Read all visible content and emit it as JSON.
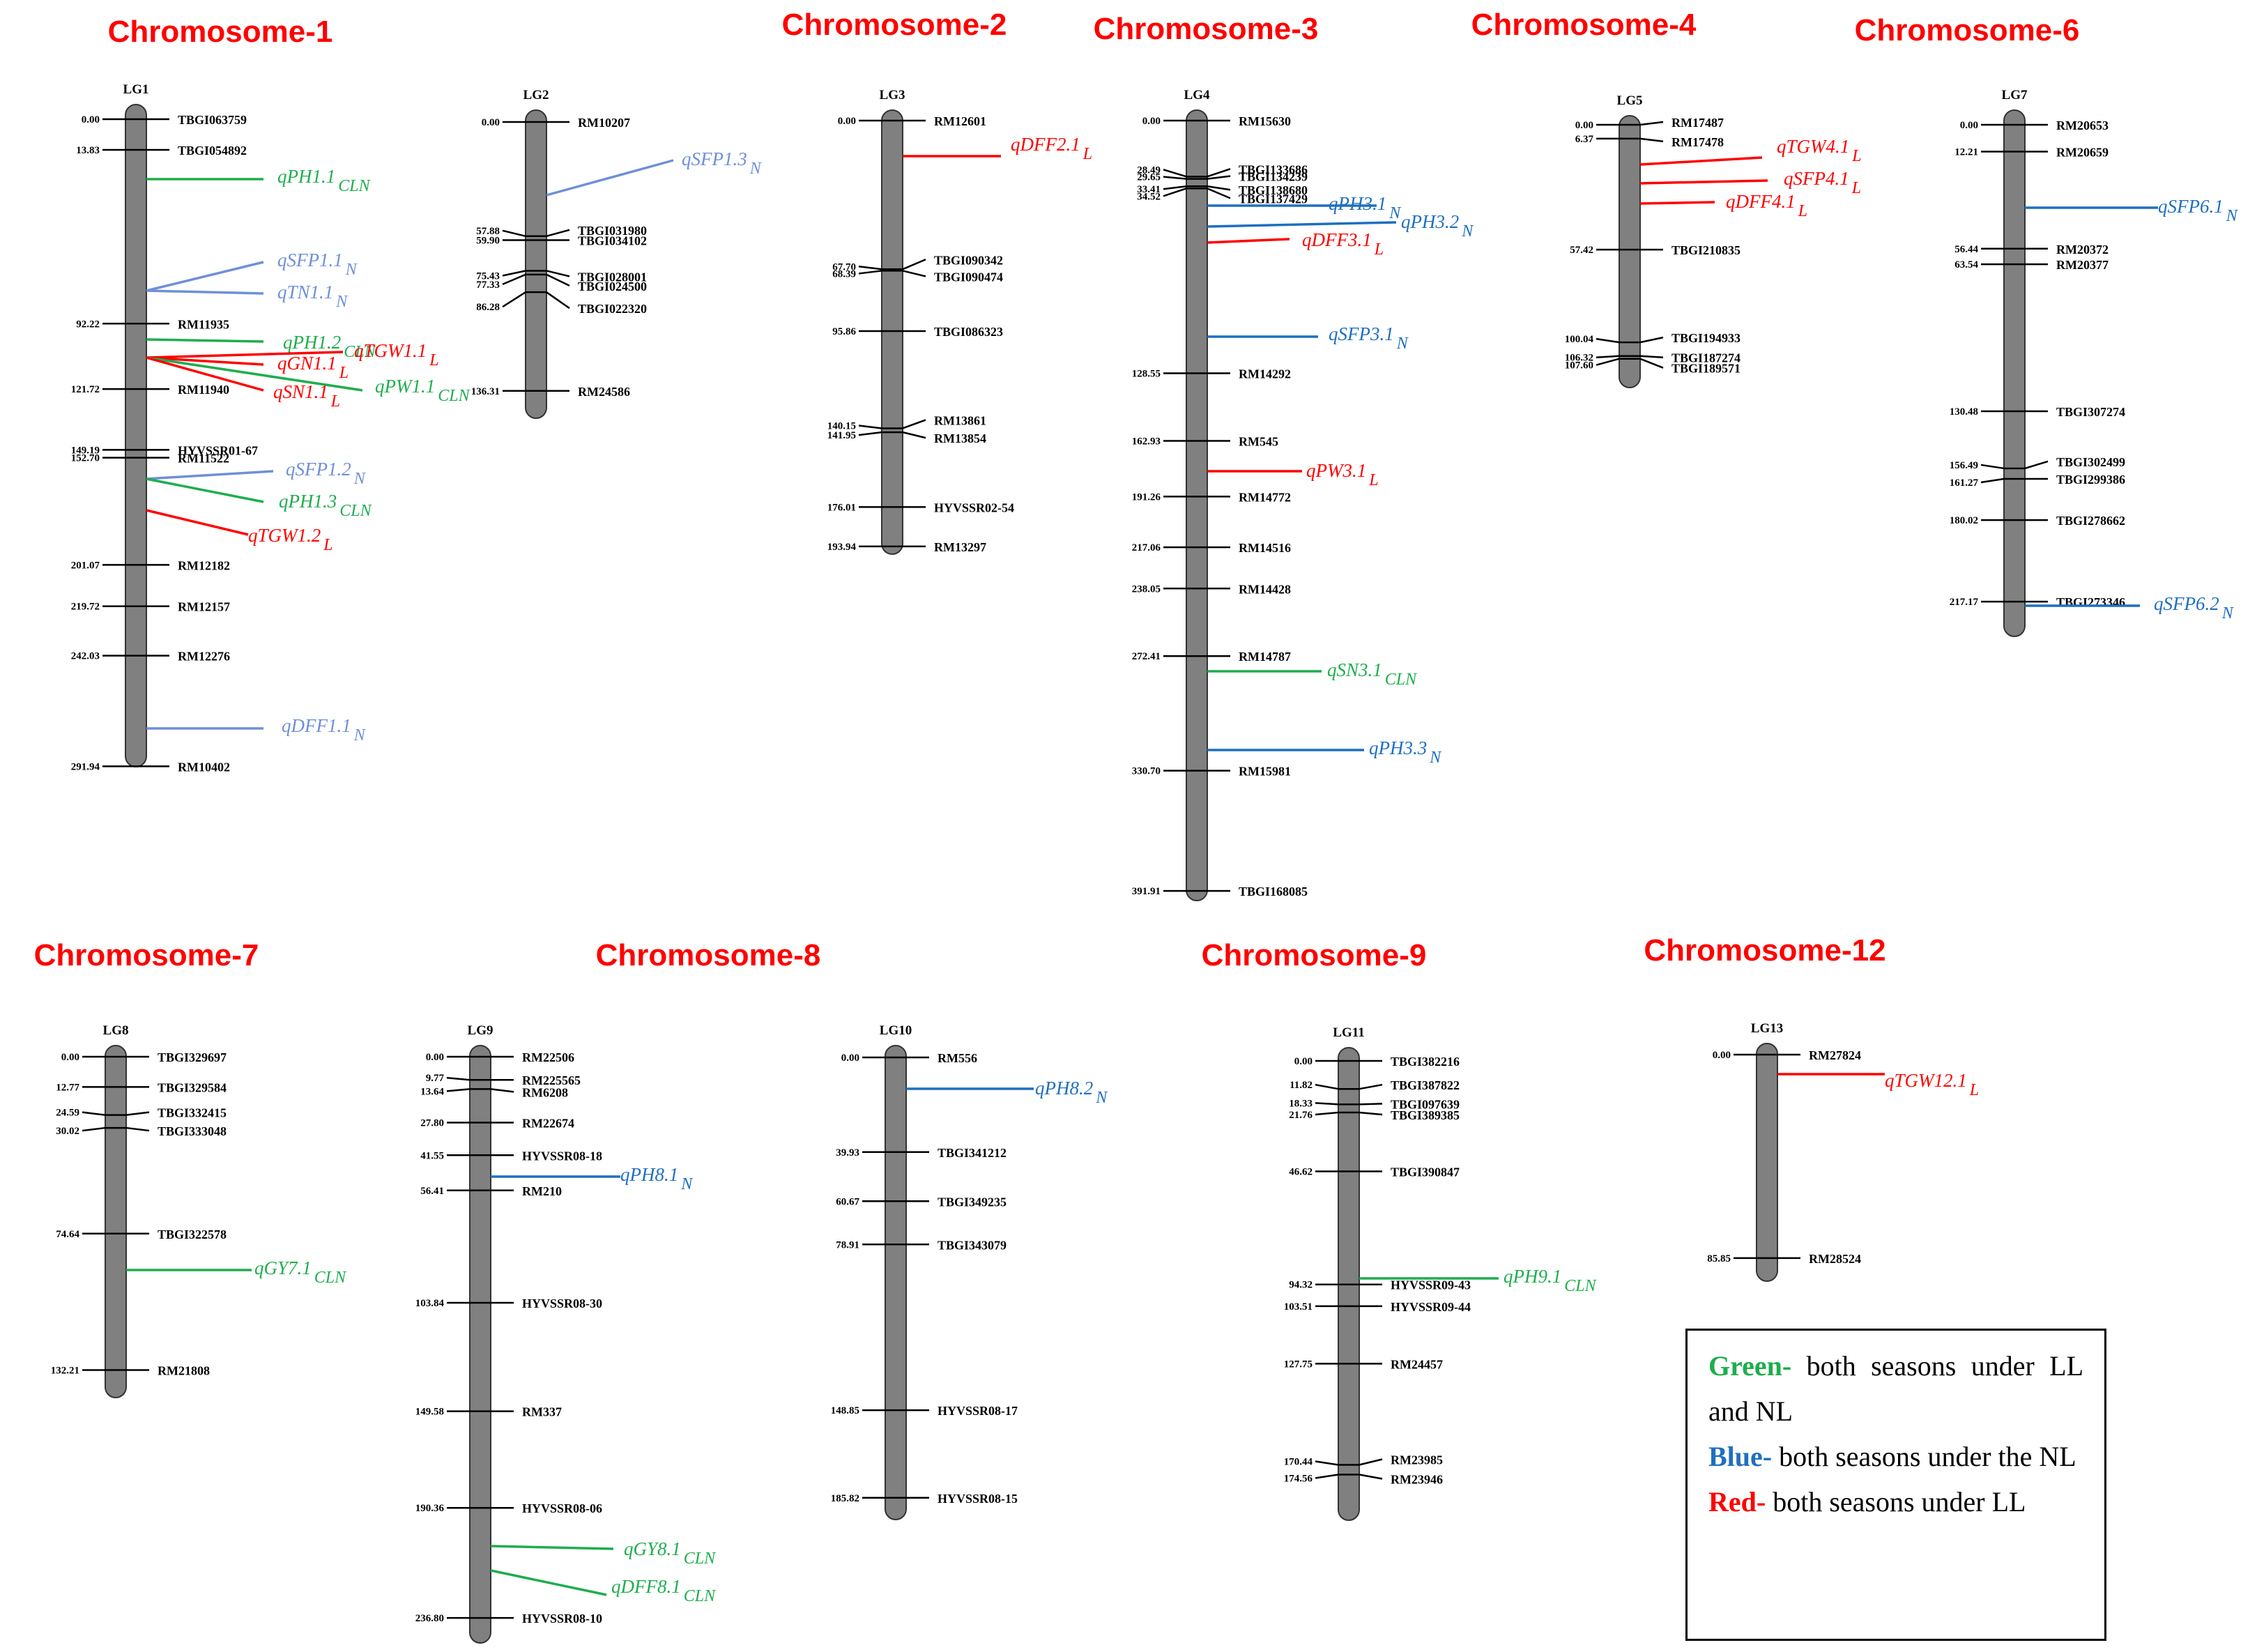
{
  "colors": {
    "title": "#ff0000",
    "green": "#1fad4e",
    "blue": "#1f6fbf",
    "red": "#ff0000",
    "orange": "#f4a460",
    "lightblue": "#6f8fd8",
    "bar": "#808080"
  },
  "chromosomes": [
    {
      "id": "c1",
      "title": "Chromosome-1"
    },
    {
      "id": "c2",
      "title": "Chromosome-2"
    },
    {
      "id": "c3",
      "title": "Chromosome-3"
    },
    {
      "id": "c4",
      "title": "Chromosome-4"
    },
    {
      "id": "c6",
      "title": "Chromosome-6"
    },
    {
      "id": "c7",
      "title": "Chromosome-7"
    },
    {
      "id": "c8",
      "title": "Chromosome-8"
    },
    {
      "id": "c9",
      "title": "Chromosome-9"
    },
    {
      "id": "c12",
      "title": "Chromosome-12"
    }
  ],
  "linkage_groups": [
    {
      "name": "LG1",
      "markers": [
        [
          "0.00",
          "TBGI063759"
        ],
        [
          "13.83",
          "TBGI054892"
        ],
        [
          "92.22",
          "RM11935"
        ],
        [
          "121.72",
          "RM11940"
        ],
        [
          "149.19",
          "HYVSSR01-67"
        ],
        [
          "152.70",
          "RM11522"
        ],
        [
          "201.07",
          "RM12182"
        ],
        [
          "219.72",
          "RM12157"
        ],
        [
          "242.03",
          "RM12276"
        ],
        [
          "291.94",
          "RM10402"
        ]
      ],
      "qtls": [
        [
          "qPH1.1",
          "CLN",
          "green"
        ],
        [
          "qSFP1.1",
          "N",
          "lightblue"
        ],
        [
          "qTN1.1",
          "N",
          "lightblue"
        ],
        [
          "qPH1.2",
          "CLN",
          "green"
        ],
        [
          "qTGW1.1",
          "L",
          "red"
        ],
        [
          "qGN1.1",
          "L",
          "red"
        ],
        [
          "qPW1.1",
          "CLN",
          "green"
        ],
        [
          "qSN1.1",
          "L",
          "red"
        ],
        [
          "qSFP1.2",
          "N",
          "lightblue"
        ],
        [
          "qPH1.3",
          "CLN",
          "green"
        ],
        [
          "qTGW1.2",
          "L",
          "red"
        ],
        [
          "qDFF1.1",
          "N",
          "lightblue"
        ]
      ]
    },
    {
      "name": "LG2",
      "markers": [
        [
          "0.00",
          "RM10207"
        ],
        [
          "57.88",
          "TBGI031980"
        ],
        [
          "59.90",
          "TBGI034102"
        ],
        [
          "75.43",
          "TBGI028001"
        ],
        [
          "77.33",
          "TBGI024500"
        ],
        [
          "86.28",
          "TBGI022320"
        ],
        [
          "136.31",
          "RM24586"
        ]
      ],
      "qtls": [
        [
          "qSFP1.3",
          "N",
          "lightblue"
        ]
      ]
    },
    {
      "name": "LG3",
      "markers": [
        [
          "0.00",
          "RM12601"
        ],
        [
          "67.70",
          "TBGI090342"
        ],
        [
          "68.39",
          "TBGI090474"
        ],
        [
          "95.86",
          "TBGI086323"
        ],
        [
          "140.15",
          "RM13861"
        ],
        [
          "141.95",
          "RM13854"
        ],
        [
          "176.01",
          "HYVSSR02-54"
        ],
        [
          "193.94",
          "RM13297"
        ]
      ],
      "qtls": [
        [
          "qDFF2.1",
          "L",
          "red"
        ]
      ]
    },
    {
      "name": "LG4",
      "markers": [
        [
          "0.00",
          "RM15630"
        ],
        [
          "28.49",
          "TBGI133686"
        ],
        [
          "29.65",
          "TBGI134239"
        ],
        [
          "33.41",
          "TBGI138680"
        ],
        [
          "34.52",
          "TBGI137429"
        ],
        [
          "128.55",
          "RM14292"
        ],
        [
          "162.93",
          "RM545"
        ],
        [
          "191.26",
          "RM14772"
        ],
        [
          "217.06",
          "RM14516"
        ],
        [
          "238.05",
          "RM14428"
        ],
        [
          "272.41",
          "RM14787"
        ],
        [
          "330.70",
          "RM15981"
        ],
        [
          "391.91",
          "TBGI168085"
        ]
      ],
      "qtls": [
        [
          "qPH3.1",
          "N",
          "blue"
        ],
        [
          "qPH3.2",
          "N",
          "blue"
        ],
        [
          "qDFF3.1",
          "L",
          "red"
        ],
        [
          "qSFP3.1",
          "N",
          "blue"
        ],
        [
          "qPW3.1",
          "L",
          "red"
        ],
        [
          "qSN3.1",
          "CLN",
          "green"
        ],
        [
          "qPH3.3",
          "N",
          "blue"
        ]
      ]
    },
    {
      "name": "LG5",
      "markers": [
        [
          "0.00",
          "RM17487"
        ],
        [
          "6.37",
          "RM17478"
        ],
        [
          "57.42",
          "TBGI210835"
        ],
        [
          "100.04",
          "TBGI194933"
        ],
        [
          "106.32",
          "TBGI187274"
        ],
        [
          "107.60",
          "TBGI189571"
        ]
      ],
      "qtls": [
        [
          "qTGW4.1",
          "L",
          "red"
        ],
        [
          "qSFP4.1",
          "L",
          "red"
        ],
        [
          "qDFF4.1",
          "L",
          "red"
        ]
      ]
    },
    {
      "name": "LG7",
      "markers": [
        [
          "0.00",
          "RM20653"
        ],
        [
          "12.21",
          "RM20659"
        ],
        [
          "56.44",
          "RM20372"
        ],
        [
          "63.54",
          "RM20377"
        ],
        [
          "130.48",
          "TBGI307274"
        ],
        [
          "156.49",
          "TBGI302499"
        ],
        [
          "161.27",
          "TBGI299386"
        ],
        [
          "180.02",
          "TBGI278662"
        ],
        [
          "217.17",
          "TBGI273346"
        ]
      ],
      "qtls": [
        [
          "qSFP6.1",
          "N",
          "blue"
        ],
        [
          "qSFP6.2",
          "N",
          "blue"
        ]
      ]
    },
    {
      "name": "LG8",
      "markers": [
        [
          "0.00",
          "TBGI329697"
        ],
        [
          "12.77",
          "TBGI329584"
        ],
        [
          "24.59",
          "TBGI332415"
        ],
        [
          "30.02",
          "TBGI333048"
        ],
        [
          "74.64",
          "TBGI322578"
        ],
        [
          "132.21",
          "RM21808"
        ]
      ],
      "qtls": [
        [
          "qGY7.1",
          "CLN",
          "green"
        ]
      ]
    },
    {
      "name": "LG9",
      "markers": [
        [
          "0.00",
          "RM22506"
        ],
        [
          "9.77",
          "RM225565"
        ],
        [
          "13.64",
          "RM6208"
        ],
        [
          "27.80",
          "RM22674"
        ],
        [
          "41.55",
          "HYVSSR08-18"
        ],
        [
          "56.41",
          "RM210"
        ],
        [
          "103.84",
          "HYVSSR08-30"
        ],
        [
          "149.58",
          "RM337"
        ],
        [
          "190.36",
          "HYVSSR08-06"
        ],
        [
          "236.80",
          "HYVSSR08-10"
        ]
      ],
      "qtls": [
        [
          "qPH8.1",
          "N",
          "blue"
        ],
        [
          "qGY8.1",
          "CLN",
          "green"
        ],
        [
          "qDFF8.1",
          "CLN",
          "green"
        ]
      ]
    },
    {
      "name": "LG10",
      "markers": [
        [
          "0.00",
          "RM556"
        ],
        [
          "39.93",
          "TBGI341212"
        ],
        [
          "60.67",
          "TBGI349235"
        ],
        [
          "78.91",
          "TBGI343079"
        ],
        [
          "148.85",
          "HYVSSR08-17"
        ],
        [
          "185.82",
          "HYVSSR08-15"
        ]
      ],
      "qtls": [
        [
          "qPH8.2",
          "N",
          "blue"
        ]
      ]
    },
    {
      "name": "LG11",
      "markers": [
        [
          "0.00",
          "TBGI382216"
        ],
        [
          "11.82",
          "TBGI387822"
        ],
        [
          "18.33",
          "TBGI097639"
        ],
        [
          "21.76",
          "TBGI389385"
        ],
        [
          "46.62",
          "TBGI390847"
        ],
        [
          "94.32",
          "HYVSSR09-43"
        ],
        [
          "103.51",
          "HYVSSR09-44"
        ],
        [
          "127.75",
          "RM24457"
        ],
        [
          "170.44",
          "RM23985"
        ],
        [
          "174.56",
          "RM23946"
        ]
      ],
      "qtls": [
        [
          "qPH9.1",
          "CLN",
          "green"
        ]
      ]
    },
    {
      "name": "LG13",
      "markers": [
        [
          "0.00",
          "RM27824"
        ],
        [
          "85.85",
          "RM28524"
        ]
      ],
      "qtls": [
        [
          "qTGW12.1",
          "L",
          "red"
        ]
      ]
    }
  ],
  "legend": [
    {
      "key": "Green-",
      "text": "both seasons under LL and NL",
      "color": "green"
    },
    {
      "key": "Blue-",
      "text": "both seasons under the NL",
      "color": "blue"
    },
    {
      "key": "Red-",
      "text": "both seasons under LL",
      "color": "red"
    }
  ]
}
